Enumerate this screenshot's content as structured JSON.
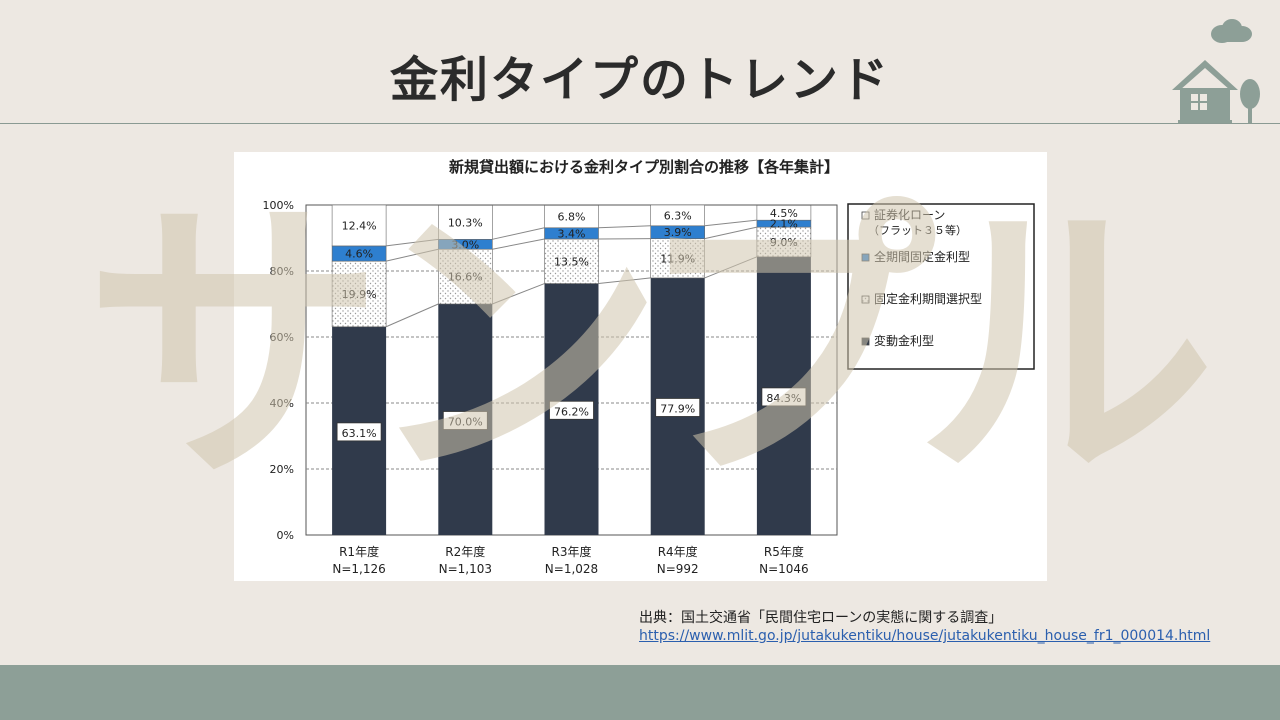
{
  "slide": {
    "title": "金利タイプのトレンド"
  },
  "watermark": {
    "text": "サンプル",
    "color": "#d9d0bf"
  },
  "colors": {
    "background": "#ede8e2",
    "accent": "#8d9f97",
    "variable": "#303a4b",
    "fixed_full": "#2e7fcf",
    "fixed_selection": "#ffffff",
    "securitized": "#ffffff"
  },
  "chart_data": {
    "type": "bar",
    "title": "新規貸出額における金利タイプ別割合の推移【各年集計】",
    "categories": [
      "R1年度",
      "R2年度",
      "R3年度",
      "R4年度",
      "R5年度"
    ],
    "sample_sizes": [
      "N=1,126",
      "N=1,103",
      "N=1,028",
      "N=992",
      "N=1046"
    ],
    "ylim": [
      0,
      100
    ],
    "yticks": [
      "0%",
      "20%",
      "40%",
      "60%",
      "80%",
      "100%"
    ],
    "stacked": true,
    "grid": true,
    "legend_position": "right",
    "series": [
      {
        "name": "変動金利型",
        "values": [
          63.1,
          70.0,
          76.2,
          77.9,
          84.3
        ],
        "labels": [
          "63.1%",
          "70.0%",
          "76.2%",
          "77.9%",
          "84.3%"
        ]
      },
      {
        "name": "固定金利期間選択型",
        "values": [
          19.9,
          16.6,
          13.5,
          11.9,
          9.0
        ],
        "labels": [
          "19.9%",
          "16.6%",
          "13.5%",
          "11.9%",
          "9.0%"
        ]
      },
      {
        "name": "全期間固定金利型",
        "values": [
          4.6,
          3.0,
          3.4,
          3.9,
          2.1
        ],
        "labels": [
          "4.6%",
          "3.0%",
          "3.4%",
          "3.9%",
          "2.1%"
        ]
      },
      {
        "name": "証券化ローン",
        "name_sub": "（フラット３５等）",
        "values": [
          12.4,
          10.3,
          6.8,
          6.3,
          4.5
        ],
        "labels": [
          "12.4%",
          "10.3%",
          "6.8%",
          "6.3%",
          "4.5%"
        ]
      }
    ]
  },
  "source": {
    "text": "出典：国土交通省「民間住宅ローンの実態に関する調査」",
    "url": "https://www.mlit.go.jp/jutakukentiku/house/jutakukentiku_house_fr1_000014.html"
  }
}
